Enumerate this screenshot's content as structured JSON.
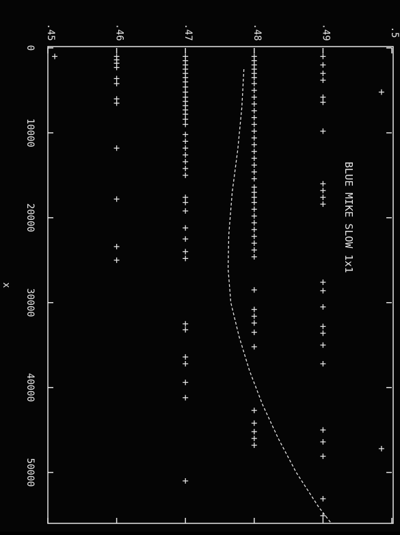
{
  "chart_data": {
    "type": "scatter",
    "title": "BLUE MIKE  SLOW 1x1",
    "xlabel": "x",
    "ylabel": "",
    "xlim": [
      0,
      56000
    ],
    "ylim": [
      0.45,
      0.5
    ],
    "x_ticks": [
      "0",
      "10000",
      "20000",
      "30000",
      "40000",
      "50000"
    ],
    "y_ticks": [
      ".45",
      ".46",
      ".47",
      ".48",
      ".49",
      ".5"
    ],
    "grid": false,
    "orientation": "rotated-90",
    "colors": {
      "background": "#050505",
      "foreground": "#e6e6e6"
    },
    "series": [
      {
        "marker": "plus",
        "points": [
          [
            1000,
            0.451
          ],
          [
            1000,
            0.46
          ],
          [
            1400,
            0.46
          ],
          [
            1800,
            0.46
          ],
          [
            2300,
            0.46
          ],
          [
            3600,
            0.46
          ],
          [
            4200,
            0.46
          ],
          [
            6000,
            0.46
          ],
          [
            6500,
            0.46
          ],
          [
            11800,
            0.46
          ],
          [
            17800,
            0.46
          ],
          [
            23400,
            0.46
          ],
          [
            25000,
            0.46
          ],
          [
            1000,
            0.47
          ],
          [
            1500,
            0.47
          ],
          [
            2000,
            0.47
          ],
          [
            2500,
            0.47
          ],
          [
            3000,
            0.47
          ],
          [
            3500,
            0.47
          ],
          [
            4000,
            0.47
          ],
          [
            4600,
            0.47
          ],
          [
            5200,
            0.47
          ],
          [
            5800,
            0.47
          ],
          [
            6300,
            0.47
          ],
          [
            6800,
            0.47
          ],
          [
            7300,
            0.47
          ],
          [
            7800,
            0.47
          ],
          [
            8400,
            0.47
          ],
          [
            9000,
            0.47
          ],
          [
            10200,
            0.47
          ],
          [
            11000,
            0.47
          ],
          [
            11800,
            0.47
          ],
          [
            12600,
            0.47
          ],
          [
            13400,
            0.47
          ],
          [
            14200,
            0.47
          ],
          [
            15000,
            0.47
          ],
          [
            17600,
            0.47
          ],
          [
            18200,
            0.47
          ],
          [
            19200,
            0.47
          ],
          [
            21200,
            0.47
          ],
          [
            22500,
            0.47
          ],
          [
            24000,
            0.47
          ],
          [
            24800,
            0.47
          ],
          [
            32500,
            0.47
          ],
          [
            33200,
            0.47
          ],
          [
            36400,
            0.47
          ],
          [
            37200,
            0.47
          ],
          [
            39400,
            0.47
          ],
          [
            41200,
            0.47
          ],
          [
            51000,
            0.47
          ],
          [
            1000,
            0.48
          ],
          [
            1500,
            0.48
          ],
          [
            2000,
            0.48
          ],
          [
            2500,
            0.48
          ],
          [
            3000,
            0.48
          ],
          [
            3500,
            0.48
          ],
          [
            4200,
            0.48
          ],
          [
            5000,
            0.48
          ],
          [
            5800,
            0.48
          ],
          [
            6600,
            0.48
          ],
          [
            7400,
            0.48
          ],
          [
            8200,
            0.48
          ],
          [
            9000,
            0.48
          ],
          [
            9800,
            0.48
          ],
          [
            10600,
            0.48
          ],
          [
            11400,
            0.48
          ],
          [
            12200,
            0.48
          ],
          [
            13000,
            0.48
          ],
          [
            13800,
            0.48
          ],
          [
            14600,
            0.48
          ],
          [
            15400,
            0.48
          ],
          [
            16400,
            0.48
          ],
          [
            17000,
            0.48
          ],
          [
            17600,
            0.48
          ],
          [
            18200,
            0.48
          ],
          [
            19000,
            0.48
          ],
          [
            19800,
            0.48
          ],
          [
            20600,
            0.48
          ],
          [
            21400,
            0.48
          ],
          [
            22200,
            0.48
          ],
          [
            23000,
            0.48
          ],
          [
            23800,
            0.48
          ],
          [
            24600,
            0.48
          ],
          [
            28500,
            0.48
          ],
          [
            30800,
            0.48
          ],
          [
            31600,
            0.48
          ],
          [
            32400,
            0.48
          ],
          [
            33500,
            0.48
          ],
          [
            35200,
            0.48
          ],
          [
            42700,
            0.48
          ],
          [
            44200,
            0.48
          ],
          [
            45200,
            0.48
          ],
          [
            46000,
            0.48
          ],
          [
            46800,
            0.48
          ],
          [
            1000,
            0.49
          ],
          [
            2000,
            0.49
          ],
          [
            3000,
            0.49
          ],
          [
            3800,
            0.49
          ],
          [
            5800,
            0.49
          ],
          [
            6400,
            0.49
          ],
          [
            9800,
            0.49
          ],
          [
            16000,
            0.49
          ],
          [
            16800,
            0.49
          ],
          [
            17600,
            0.49
          ],
          [
            18400,
            0.49
          ],
          [
            27600,
            0.49
          ],
          [
            28600,
            0.49
          ],
          [
            30500,
            0.49
          ],
          [
            32800,
            0.49
          ],
          [
            33600,
            0.49
          ],
          [
            35000,
            0.49
          ],
          [
            37200,
            0.49
          ],
          [
            45000,
            0.49
          ],
          [
            46400,
            0.49
          ],
          [
            48100,
            0.49
          ],
          [
            53100,
            0.49
          ],
          [
            55100,
            0.49
          ],
          [
            5200,
            0.4985
          ],
          [
            47200,
            0.4985
          ]
        ]
      },
      {
        "marker": "dashed-line",
        "points": [
          [
            2500,
            0.4785
          ],
          [
            7000,
            0.4782
          ],
          [
            12000,
            0.4776
          ],
          [
            17000,
            0.4768
          ],
          [
            22000,
            0.4763
          ],
          [
            26000,
            0.4762
          ],
          [
            30000,
            0.4766
          ],
          [
            34000,
            0.4778
          ],
          [
            38000,
            0.4793
          ],
          [
            42000,
            0.4812
          ],
          [
            46000,
            0.4835
          ],
          [
            50000,
            0.4861
          ],
          [
            54000,
            0.4893
          ],
          [
            56000,
            0.4912
          ]
        ]
      }
    ]
  }
}
